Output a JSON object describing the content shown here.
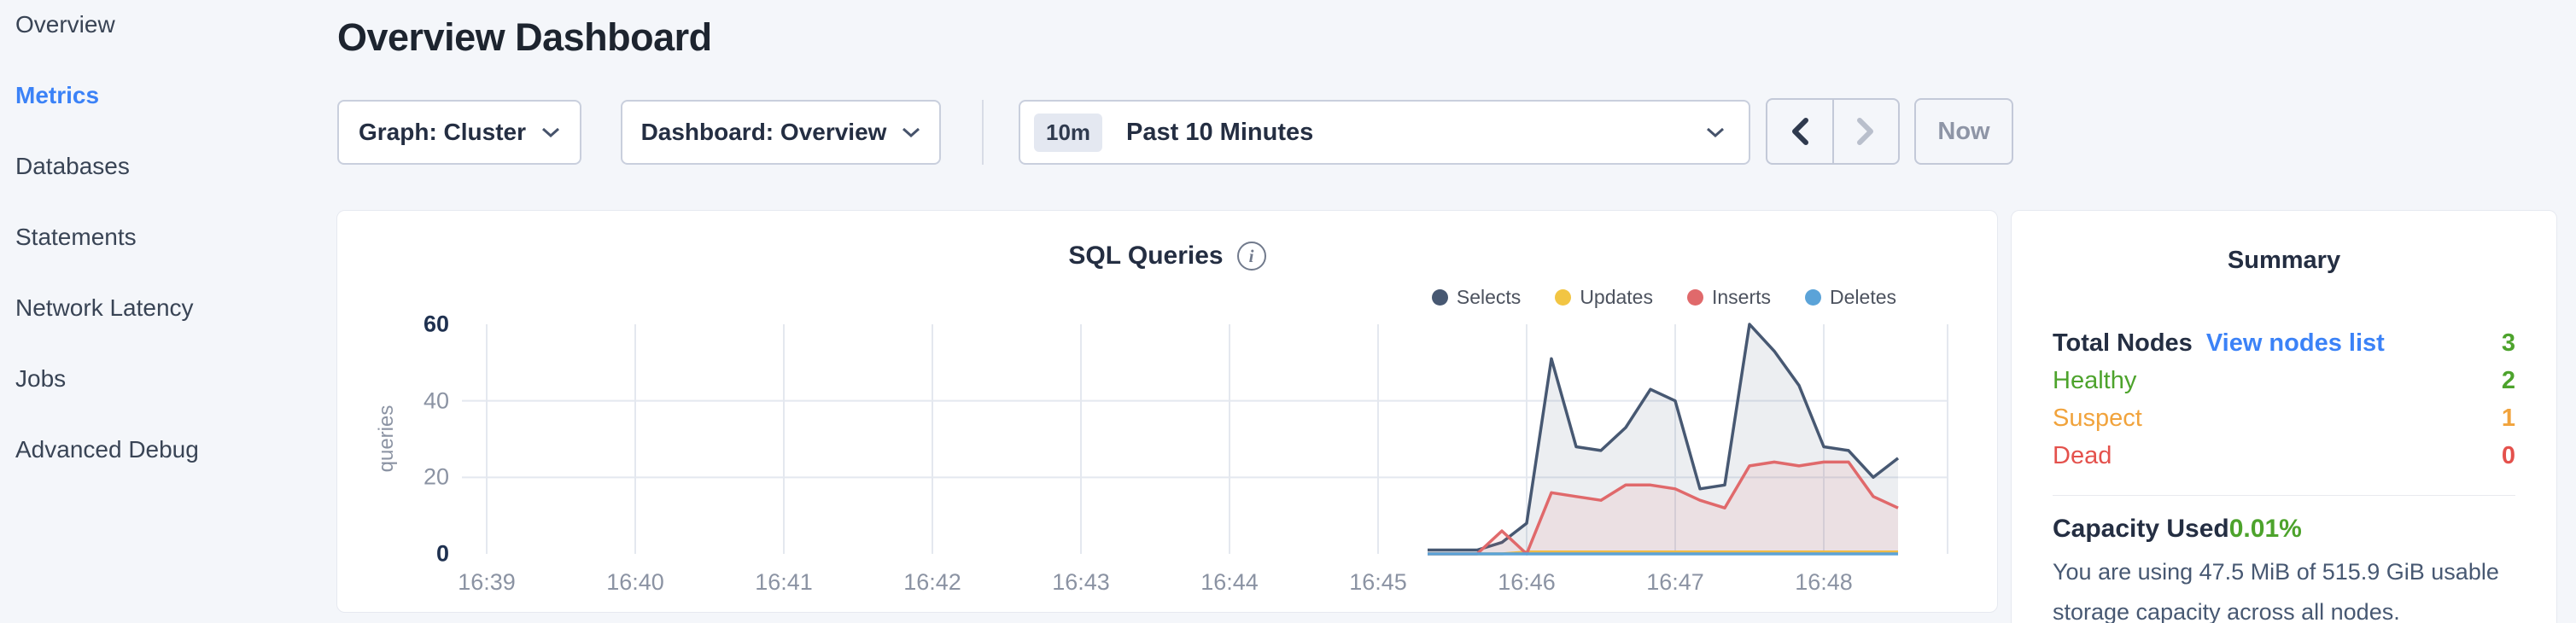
{
  "sidebar": {
    "items": [
      {
        "label": "Overview",
        "active": false
      },
      {
        "label": "Metrics",
        "active": true
      },
      {
        "label": "Databases",
        "active": false
      },
      {
        "label": "Statements",
        "active": false
      },
      {
        "label": "Network Latency",
        "active": false
      },
      {
        "label": "Jobs",
        "active": false
      },
      {
        "label": "Advanced Debug",
        "active": false
      }
    ]
  },
  "header": {
    "title": "Overview Dashboard"
  },
  "toolbar": {
    "graph_dropdown": "Graph: Cluster",
    "dashboard_dropdown": "Dashboard: Overview",
    "time_badge": "10m",
    "time_label": "Past 10 Minutes",
    "now_button": "Now"
  },
  "chart_data": {
    "type": "area",
    "title": "SQL Queries",
    "ylabel": "queries",
    "ylim": [
      0,
      60
    ],
    "yticks": [
      0,
      20,
      40,
      60
    ],
    "grid": true,
    "legend_position": "top-right",
    "x_window": "Past 10 Minutes (16:38:50 - 16:48:50)",
    "x_total_seconds": 600,
    "x_ticks": [
      {
        "label": "16:39",
        "t": 10
      },
      {
        "label": "16:40",
        "t": 70
      },
      {
        "label": "16:41",
        "t": 130
      },
      {
        "label": "16:42",
        "t": 190
      },
      {
        "label": "16:43",
        "t": 250
      },
      {
        "label": "16:44",
        "t": 310
      },
      {
        "label": "16:45",
        "t": 370
      },
      {
        "label": "16:46",
        "t": 430
      },
      {
        "label": "16:47",
        "t": 490
      },
      {
        "label": "16:48",
        "t": 550
      }
    ],
    "series": [
      {
        "name": "Selects",
        "color": "#475872",
        "fill": "rgba(71,88,114,0.10)",
        "t": [
          390,
          400,
          410,
          420,
          430,
          440,
          450,
          460,
          470,
          480,
          490,
          500,
          510,
          520,
          530,
          540,
          550,
          560,
          570,
          580
        ],
        "values": [
          1,
          1,
          1,
          3,
          8,
          51,
          28,
          27,
          33,
          43,
          40,
          17,
          18,
          60,
          53,
          44,
          28,
          27,
          20,
          25
        ]
      },
      {
        "name": "Updates",
        "color": "#f2c543",
        "fill": "rgba(242,197,67,0.12)",
        "t": [
          390,
          400,
          410,
          420,
          430,
          440,
          450,
          460,
          470,
          480,
          490,
          500,
          510,
          520,
          530,
          540,
          550,
          560,
          570,
          580
        ],
        "values": [
          0,
          0,
          0,
          0,
          0.5,
          0.5,
          0.5,
          0.5,
          0.5,
          0.5,
          0.5,
          0.5,
          0.5,
          0.5,
          0.5,
          0.5,
          0.5,
          0.5,
          0.5,
          0.5
        ]
      },
      {
        "name": "Inserts",
        "color": "#e0696b",
        "fill": "rgba(224,105,107,0.10)",
        "t": [
          390,
          400,
          410,
          420,
          430,
          440,
          450,
          460,
          470,
          480,
          490,
          500,
          510,
          520,
          530,
          540,
          550,
          560,
          570,
          580
        ],
        "values": [
          0,
          0,
          0,
          6,
          0,
          16,
          15,
          14,
          18,
          18,
          17,
          14,
          12,
          23,
          24,
          23,
          24,
          24,
          15,
          12
        ]
      },
      {
        "name": "Deletes",
        "color": "#5ba3d8",
        "fill": "rgba(91,163,216,0.10)",
        "t": [
          390,
          400,
          410,
          420,
          430,
          440,
          450,
          460,
          470,
          480,
          490,
          500,
          510,
          520,
          530,
          540,
          550,
          560,
          570,
          580
        ],
        "values": [
          0,
          0,
          0,
          0,
          0,
          0,
          0,
          0,
          0,
          0,
          0,
          0,
          0,
          0,
          0,
          0,
          0,
          0,
          0,
          0
        ]
      }
    ]
  },
  "summary": {
    "title": "Summary",
    "rows": [
      {
        "label": "Total Nodes",
        "link": "View nodes list",
        "value": "3"
      },
      {
        "label": "Healthy",
        "value": "2"
      },
      {
        "label": "Suspect",
        "value": "1"
      },
      {
        "label": "Dead",
        "value": "0"
      }
    ],
    "capacity": {
      "label": "Capacity Used",
      "value": "0.01%",
      "description": "You are using 47.5 MiB of 515.9 GiB usable storage capacity across all nodes."
    }
  },
  "colors": {
    "accent_blue": "#3b82f7",
    "healthy_green": "#4da32c",
    "suspect_orange": "#f1a33c",
    "dead_red": "#e4514c",
    "page_background": "#f4f6fa"
  }
}
